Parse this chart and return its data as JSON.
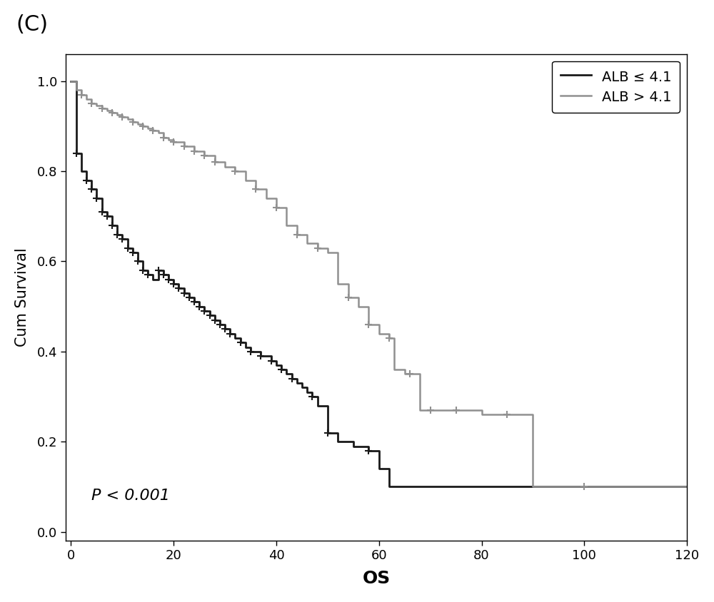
{
  "title_label": "(C)",
  "xlabel": "OS",
  "ylabel": "Cum Survival",
  "pvalue_text": "P < 0.001",
  "legend_labels": [
    "ALB ≤ 4.1",
    "ALB > 4.1"
  ],
  "group1_color": "#1a1a1a",
  "group2_color": "#909090",
  "xlim": [
    -1,
    120
  ],
  "ylim": [
    -0.02,
    1.06
  ],
  "xticks": [
    0,
    20,
    40,
    60,
    80,
    100,
    120
  ],
  "yticks": [
    0.0,
    0.2,
    0.4,
    0.6,
    0.8,
    1.0
  ],
  "g1_t": [
    0,
    1,
    2,
    3,
    4,
    5,
    6,
    7,
    8,
    9,
    10,
    11,
    12,
    13,
    14,
    15,
    16,
    17,
    18,
    19,
    20,
    21,
    22,
    23,
    24,
    25,
    26,
    27,
    28,
    29,
    30,
    31,
    32,
    33,
    34,
    35,
    36,
    37,
    38,
    39,
    40,
    41,
    42,
    43,
    44,
    45,
    46,
    47,
    48,
    50,
    52,
    55,
    58,
    60,
    62,
    65,
    120
  ],
  "g1_s": [
    1.0,
    0.84,
    0.8,
    0.78,
    0.76,
    0.74,
    0.71,
    0.7,
    0.68,
    0.66,
    0.65,
    0.63,
    0.62,
    0.6,
    0.58,
    0.57,
    0.56,
    0.58,
    0.57,
    0.56,
    0.55,
    0.54,
    0.53,
    0.52,
    0.51,
    0.5,
    0.49,
    0.48,
    0.47,
    0.46,
    0.45,
    0.44,
    0.43,
    0.42,
    0.41,
    0.4,
    0.4,
    0.39,
    0.39,
    0.38,
    0.37,
    0.36,
    0.35,
    0.34,
    0.33,
    0.32,
    0.31,
    0.3,
    0.28,
    0.22,
    0.2,
    0.19,
    0.18,
    0.14,
    0.1,
    0.1,
    0.1
  ],
  "g1_censor_t": [
    1,
    3,
    4,
    5,
    6,
    7,
    8,
    9,
    10,
    11,
    12,
    13,
    14,
    15,
    17,
    18,
    19,
    20,
    21,
    22,
    23,
    24,
    25,
    26,
    27,
    28,
    29,
    30,
    31,
    33,
    35,
    37,
    39,
    41,
    43,
    47,
    50,
    58
  ],
  "g2_t": [
    0,
    1,
    2,
    3,
    4,
    5,
    6,
    7,
    8,
    9,
    10,
    11,
    12,
    13,
    14,
    15,
    16,
    17,
    18,
    19,
    20,
    22,
    24,
    26,
    28,
    30,
    32,
    34,
    36,
    38,
    40,
    42,
    44,
    46,
    48,
    50,
    52,
    54,
    56,
    58,
    60,
    62,
    63,
    65,
    66,
    68,
    70,
    75,
    80,
    85,
    90,
    100,
    115,
    120
  ],
  "g2_s": [
    1.0,
    0.98,
    0.97,
    0.96,
    0.95,
    0.945,
    0.94,
    0.935,
    0.93,
    0.925,
    0.92,
    0.915,
    0.91,
    0.905,
    0.9,
    0.895,
    0.89,
    0.885,
    0.875,
    0.87,
    0.865,
    0.855,
    0.845,
    0.835,
    0.82,
    0.81,
    0.8,
    0.78,
    0.76,
    0.74,
    0.72,
    0.68,
    0.66,
    0.64,
    0.63,
    0.62,
    0.55,
    0.52,
    0.5,
    0.46,
    0.44,
    0.43,
    0.36,
    0.35,
    0.35,
    0.27,
    0.27,
    0.27,
    0.26,
    0.26,
    0.1,
    0.1,
    0.1,
    0.1
  ],
  "g2_censor_t": [
    2,
    4,
    6,
    8,
    10,
    12,
    14,
    16,
    18,
    20,
    22,
    24,
    26,
    28,
    32,
    36,
    40,
    44,
    48,
    54,
    58,
    62,
    66,
    70,
    75,
    85,
    100
  ]
}
